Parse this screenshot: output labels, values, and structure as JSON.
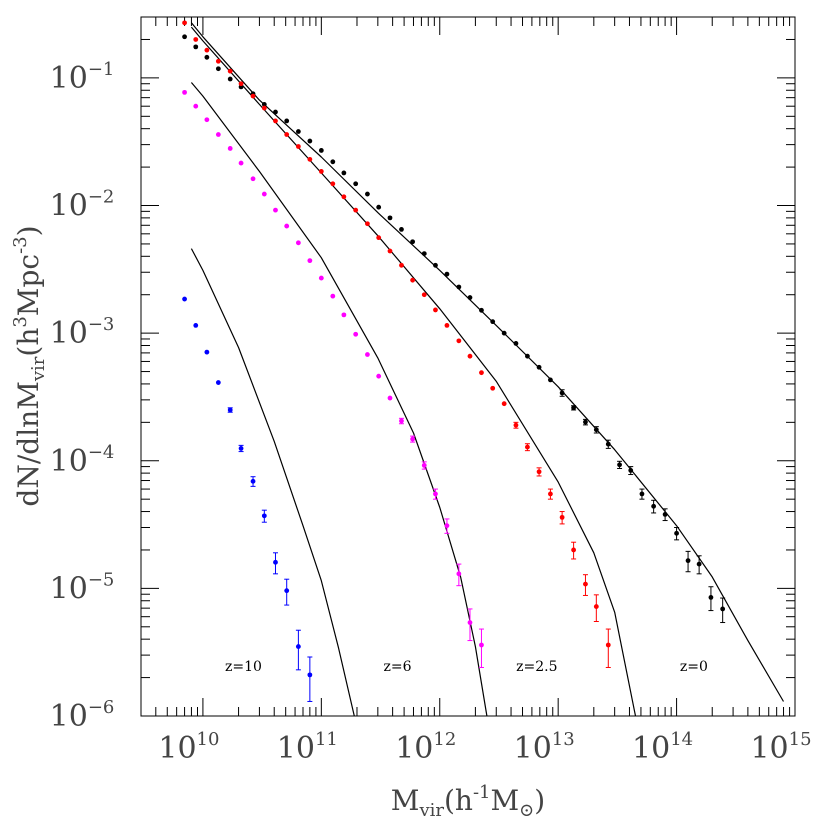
{
  "chart_data": {
    "type": "scatter",
    "x_scale": "log",
    "y_scale": "log",
    "xlim": [
      3000000000.0,
      1000000000000000.0
    ],
    "ylim": [
      1e-06,
      0.3
    ],
    "grid": false,
    "xlabel": {
      "base": "M",
      "sub": "vir",
      "unit": "(h",
      "unit_exp": "-1",
      "unit_rest": "M",
      "unit_sub": "⊙",
      "close": ")"
    },
    "ylabel": {
      "prefix": "dN/dlnM",
      "sub": "vir",
      "unit": "(h",
      "unit_exp": "3",
      "unit_mid": "Mpc",
      "unit_exp2": "-3",
      "close": ")"
    },
    "x_ticks": [
      {
        "base": "10",
        "exp": "10",
        "value": 10000000000.0
      },
      {
        "base": "10",
        "exp": "11",
        "value": 100000000000.0
      },
      {
        "base": "10",
        "exp": "12",
        "value": 1000000000000.0
      },
      {
        "base": "10",
        "exp": "13",
        "value": 10000000000000.0
      },
      {
        "base": "10",
        "exp": "14",
        "value": 100000000000000.0
      },
      {
        "base": "10",
        "exp": "15",
        "value": 1000000000000000.0
      }
    ],
    "y_ticks": [
      {
        "base": "10",
        "exp": "−6",
        "value": 1e-06
      },
      {
        "base": "10",
        "exp": "−5",
        "value": 1e-05
      },
      {
        "base": "10",
        "exp": "−4",
        "value": 0.0001
      },
      {
        "base": "10",
        "exp": "−3",
        "value": 0.001
      },
      {
        "base": "10",
        "exp": "−2",
        "value": 0.01
      },
      {
        "base": "10",
        "exp": "−1",
        "value": 0.1
      }
    ],
    "annotations": [
      {
        "text": "z=10",
        "x": 22000000000.0,
        "y": 2.5e-06
      },
      {
        "text": "z=6",
        "x": 440000000000.0,
        "y": 2.5e-06
      },
      {
        "text": "z=2.5",
        "x": 6600000000000.0,
        "y": 2.5e-06
      },
      {
        "text": "z=0",
        "x": 140000000000000.0,
        "y": 2.5e-06
      }
    ],
    "series": [
      {
        "color": "#000000",
        "points": [
          [
            7000000000.0,
            0.21,
            0
          ],
          [
            8700000000.0,
            0.175,
            0
          ],
          [
            10800000000.0,
            0.145,
            0
          ],
          [
            13500000000.0,
            0.118,
            0
          ],
          [
            17000000000.0,
            0.098,
            0
          ],
          [
            21000000000.0,
            0.085,
            0
          ],
          [
            26500000000.0,
            0.075,
            0
          ],
          [
            33000000000.0,
            0.062,
            0
          ],
          [
            41000000000.0,
            0.054,
            0
          ],
          [
            51000000000.0,
            0.046,
            0
          ],
          [
            64000000000.0,
            0.038,
            0
          ],
          [
            80000000000.0,
            0.032,
            0
          ],
          [
            100000000000.0,
            0.027,
            0
          ],
          [
            125000000000.0,
            0.022,
            0
          ],
          [
            155000000000.0,
            0.018,
            0
          ],
          [
            195000000000.0,
            0.0148,
            0
          ],
          [
            245000000000.0,
            0.0123,
            0
          ],
          [
            305000000000.0,
            0.0097,
            0
          ],
          [
            380000000000.0,
            0.008,
            0
          ],
          [
            475000000000.0,
            0.0065,
            0
          ],
          [
            590000000000.0,
            0.0052,
            0
          ],
          [
            740000000000.0,
            0.0042,
            0
          ],
          [
            920000000000.0,
            0.0034,
            0
          ],
          [
            1150000000000.0,
            0.0029,
            0
          ],
          [
            1450000000000.0,
            0.0023,
            0
          ],
          [
            1800000000000.0,
            0.0019,
            0
          ],
          [
            2250000000000.0,
            0.00151,
            0
          ],
          [
            2800000000000.0,
            0.00123,
            0
          ],
          [
            3500000000000.0,
            0.001,
            0
          ],
          [
            4400000000000.0,
            0.00083,
            0
          ],
          [
            5500000000000.0,
            0.00066,
            0
          ],
          [
            6900000000000.0,
            0.00054,
            0
          ],
          [
            8600000000000.0,
            0.00043,
            0
          ],
          [
            10800000000000.0,
            0.00034,
            2e-05
          ],
          [
            13500000000000.0,
            0.00026,
            1e-05
          ],
          [
            17000000000000.0,
            0.000201,
            1e-05
          ],
          [
            21000000000000.0,
            0.000175,
            1e-05
          ],
          [
            26500000000000.0,
            0.000135,
            1e-05
          ],
          [
            33000000000000.0,
            9.3e-05,
            6e-06
          ],
          [
            41000000000000.0,
            8.4e-05,
            6e-06
          ],
          [
            51000000000000.0,
            5.5e-05,
            5e-06
          ],
          [
            64000000000000.0,
            4.4e-05,
            5e-06
          ],
          [
            80000000000000.0,
            3.8e-05,
            4e-06
          ],
          [
            100000000000000.0,
            2.7e-05,
            3e-06
          ],
          [
            125000000000000.0,
            1.65e-05,
            3e-06
          ],
          [
            155000000000000.0,
            1.55e-05,
            2.5e-06
          ],
          [
            195000000000000.0,
            8.5e-06,
            1.8e-06
          ],
          [
            245000000000000.0,
            6.9e-06,
            1.5e-06
          ]
        ]
      },
      {
        "color": "#ff0000",
        "points": [
          [
            7000000000.0,
            0.27,
            0
          ],
          [
            8700000000.0,
            0.2,
            0
          ],
          [
            10800000000.0,
            0.165,
            0
          ],
          [
            13500000000.0,
            0.135,
            0
          ],
          [
            17000000000.0,
            0.113,
            0
          ],
          [
            21000000000.0,
            0.09,
            0
          ],
          [
            26500000000.0,
            0.072,
            0
          ],
          [
            33000000000.0,
            0.058,
            0
          ],
          [
            41000000000.0,
            0.046,
            0
          ],
          [
            51000000000.0,
            0.036,
            0
          ],
          [
            64000000000.0,
            0.029,
            0
          ],
          [
            80000000000.0,
            0.023,
            0
          ],
          [
            100000000000.0,
            0.0185,
            0
          ],
          [
            125000000000.0,
            0.0148,
            0
          ],
          [
            155000000000.0,
            0.0117,
            0
          ],
          [
            195000000000.0,
            0.0092,
            0
          ],
          [
            245000000000.0,
            0.0072,
            0
          ],
          [
            305000000000.0,
            0.0056,
            0
          ],
          [
            380000000000.0,
            0.0044,
            0
          ],
          [
            475000000000.0,
            0.0034,
            0
          ],
          [
            590000000000.0,
            0.0026,
            0
          ],
          [
            740000000000.0,
            0.002,
            0
          ],
          [
            920000000000.0,
            0.00152,
            0
          ],
          [
            1150000000000.0,
            0.00115,
            0
          ],
          [
            1450000000000.0,
            0.00087,
            0
          ],
          [
            1800000000000.0,
            0.00066,
            0
          ],
          [
            2250000000000.0,
            0.00049,
            0
          ],
          [
            2800000000000.0,
            0.00037,
            0
          ],
          [
            3500000000000.0,
            0.00028,
            0
          ],
          [
            4400000000000.0,
            0.00019,
            1e-05
          ],
          [
            5500000000000.0,
            0.000128,
            8e-06
          ],
          [
            6900000000000.0,
            8.2e-05,
            6e-06
          ],
          [
            8600000000000.0,
            5.5e-05,
            5e-06
          ],
          [
            10800000000000.0,
            3.6e-05,
            4e-06
          ],
          [
            13500000000000.0,
            2e-05,
            3e-06
          ],
          [
            17000000000000.0,
            1.08e-05,
            2e-06
          ],
          [
            21000000000000.0,
            7.2e-06,
            1.7e-06
          ],
          [
            26500000000000.0,
            3.6e-06,
            1.2e-06
          ]
        ]
      },
      {
        "color": "#ff00ff",
        "points": [
          [
            7000000000.0,
            0.077,
            0
          ],
          [
            8700000000.0,
            0.06,
            0
          ],
          [
            10800000000.0,
            0.047,
            0
          ],
          [
            13500000000.0,
            0.036,
            0
          ],
          [
            17000000000.0,
            0.028,
            0
          ],
          [
            21000000000.0,
            0.0215,
            0
          ],
          [
            26500000000.0,
            0.0162,
            0
          ],
          [
            33000000000.0,
            0.0123,
            0
          ],
          [
            41000000000.0,
            0.0092,
            0
          ],
          [
            51000000000.0,
            0.0069,
            0
          ],
          [
            64000000000.0,
            0.0051,
            0
          ],
          [
            80000000000.0,
            0.0037,
            0
          ],
          [
            100000000000.0,
            0.0027,
            0
          ],
          [
            125000000000.0,
            0.00195,
            0
          ],
          [
            155000000000.0,
            0.00139,
            0
          ],
          [
            195000000000.0,
            0.00098,
            0
          ],
          [
            245000000000.0,
            0.00068,
            0
          ],
          [
            305000000000.0,
            0.00046,
            0
          ],
          [
            380000000000.0,
            0.00031,
            0
          ],
          [
            475000000000.0,
            0.000205,
            1e-05
          ],
          [
            590000000000.0,
            0.000148,
            8e-06
          ],
          [
            740000000000.0,
            9.2e-05,
            6e-06
          ],
          [
            920000000000.0,
            5.5e-05,
            5e-06
          ],
          [
            1150000000000.0,
            3.1e-05,
            4e-06
          ],
          [
            1450000000000.0,
            1.3e-05,
            2.5e-06
          ],
          [
            1800000000000.0,
            5.4e-06,
            1.5e-06
          ],
          [
            2250000000000.0,
            3.6e-06,
            1.2e-06
          ]
        ]
      },
      {
        "color": "#0000ff",
        "points": [
          [
            7000000000.0,
            0.00185,
            0
          ],
          [
            8700000000.0,
            0.00115,
            0
          ],
          [
            10800000000.0,
            0.00071,
            0
          ],
          [
            13500000000.0,
            0.00041,
            0
          ],
          [
            17000000000.0,
            0.00025,
            1e-05
          ],
          [
            21000000000.0,
            0.000125,
            7e-06
          ],
          [
            26500000000.0,
            6.9e-05,
            6e-06
          ],
          [
            33000000000.0,
            3.7e-05,
            4e-06
          ],
          [
            41000000000.0,
            1.6e-05,
            3e-06
          ],
          [
            51000000000.0,
            9.6e-06,
            2.2e-06
          ],
          [
            64000000000.0,
            3.5e-06,
            1.2e-06
          ],
          [
            80000000000.0,
            2.1e-06,
            8e-07
          ]
        ]
      }
    ],
    "curves": [
      {
        "color": "#000000",
        "points": [
          [
            8000000000.0,
            0.27
          ],
          [
            10000000000.0,
            0.21
          ],
          [
            30000000000.0,
            0.067
          ],
          [
            100000000000.0,
            0.024
          ],
          [
            300000000000.0,
            0.0088
          ],
          [
            1000000000000.0,
            0.0031
          ],
          [
            3000000000000.0,
            0.00115
          ],
          [
            10000000000000.0,
            0.00038
          ],
          [
            30000000000000.0,
            0.000122
          ],
          [
            100000000000000.0,
            3.1e-05
          ],
          [
            200000000000000.0,
            1.23e-05
          ],
          [
            400000000000000.0,
            3.9e-06
          ],
          [
            800000000000000.0,
            1.3e-06
          ]
        ]
      },
      {
        "color": "#000000",
        "points": [
          [
            8000000000.0,
            0.25
          ],
          [
            10000000000.0,
            0.195
          ],
          [
            30000000000.0,
            0.062
          ],
          [
            100000000000.0,
            0.018
          ],
          [
            300000000000.0,
            0.0058
          ],
          [
            1000000000000.0,
            0.00155
          ],
          [
            3000000000000.0,
            0.00042
          ],
          [
            10000000000000.0,
            6.8e-05
          ],
          [
            20000000000000.0,
            1.9e-05
          ],
          [
            30000000000000.0,
            6.5e-06
          ],
          [
            45000000000000.0,
            1e-06
          ]
        ]
      },
      {
        "color": "#000000",
        "points": [
          [
            8000000000.0,
            0.092
          ],
          [
            10000000000.0,
            0.072
          ],
          [
            30000000000.0,
            0.0185
          ],
          [
            100000000000.0,
            0.0039
          ],
          [
            300000000000.0,
            0.00064
          ],
          [
            600000000000.0,
            0.000165
          ],
          [
            1000000000000.0,
            4.3e-05
          ],
          [
            1500000000000.0,
            1.23e-05
          ],
          [
            2000000000000.0,
            3.5e-06
          ],
          [
            2500000000000.0,
            1e-06
          ]
        ]
      },
      {
        "color": "#000000",
        "points": [
          [
            8000000000.0,
            0.0046
          ],
          [
            10000000000.0,
            0.0031
          ],
          [
            20000000000.0,
            0.00077
          ],
          [
            40000000000.0,
            0.000142
          ],
          [
            70000000000.0,
            3.1e-05
          ],
          [
            100000000000.0,
            1.15e-05
          ],
          [
            140000000000.0,
            3.4e-06
          ],
          [
            190000000000.0,
            1e-06
          ]
        ]
      }
    ]
  }
}
